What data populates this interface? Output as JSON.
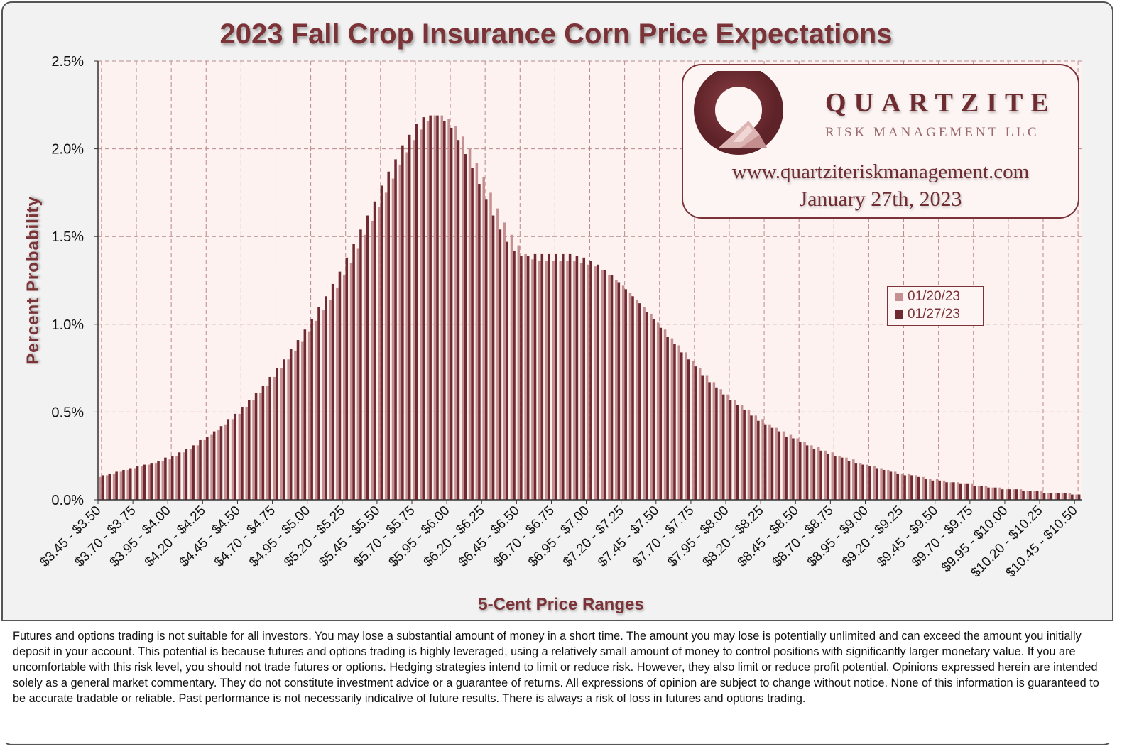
{
  "chart_data": {
    "type": "bar",
    "title": "2023 Fall Crop Insurance Corn Price Expectations",
    "xlabel": "5-Cent Price Ranges",
    "ylabel": "Percent Probability",
    "ylim": [
      0,
      2.5
    ],
    "yticks": [
      "0.0%",
      "0.5%",
      "1.0%",
      "1.5%",
      "2.0%",
      "2.5%"
    ],
    "xtick_labels": [
      "$3.45 - $3.50",
      "$3.70 - $3.75",
      "$3.95 - $4.00",
      "$4.20 - $4.25",
      "$4.45 - $4.50",
      "$4.70 - $4.75",
      "$4.95 - $5.00",
      "$5.20 - $5.25",
      "$5.45 - $5.50",
      "$5.70 - $5.75",
      "$5.95 - $6.00",
      "$6.20 - $6.25",
      "$6.45 - $6.50",
      "$6.70 - $6.75",
      "$6.95 - $7.00",
      "$7.20 - $7.25",
      "$7.45 - $7.50",
      "$7.70 - $7.75",
      "$7.95 - $8.00",
      "$8.20 - $8.25",
      "$8.45 - $8.50",
      "$8.70 - $8.75",
      "$8.95 - $9.00",
      "$9.20 - $9.25",
      "$9.45 - $9.50",
      "$9.70 - $9.75",
      "$9.95 - $10.00",
      "$10.20 - $10.25",
      "$10.45 - $10.50"
    ],
    "category_start": 3.45,
    "category_step": 0.05,
    "category_count": 141,
    "grid": true,
    "legend_position": "right",
    "series": [
      {
        "name": "01/20/23",
        "color": "#c49091",
        "values": [
          0.13,
          0.14,
          0.15,
          0.16,
          0.17,
          0.18,
          0.19,
          0.2,
          0.21,
          0.22,
          0.23,
          0.25,
          0.27,
          0.29,
          0.31,
          0.34,
          0.37,
          0.4,
          0.43,
          0.46,
          0.49,
          0.53,
          0.57,
          0.61,
          0.65,
          0.7,
          0.75,
          0.8,
          0.85,
          0.9,
          0.96,
          1.02,
          1.08,
          1.14,
          1.21,
          1.28,
          1.35,
          1.43,
          1.51,
          1.59,
          1.67,
          1.75,
          1.83,
          1.91,
          1.98,
          2.05,
          2.11,
          2.16,
          2.19,
          2.19,
          2.17,
          2.13,
          2.07,
          2.0,
          1.92,
          1.84,
          1.75,
          1.66,
          1.58,
          1.51,
          1.45,
          1.4,
          1.37,
          1.36,
          1.36,
          1.36,
          1.36,
          1.36,
          1.36,
          1.35,
          1.34,
          1.33,
          1.31,
          1.28,
          1.25,
          1.22,
          1.18,
          1.14,
          1.1,
          1.06,
          1.01,
          0.97,
          0.92,
          0.88,
          0.84,
          0.79,
          0.75,
          0.71,
          0.67,
          0.63,
          0.6,
          0.57,
          0.54,
          0.51,
          0.48,
          0.46,
          0.43,
          0.41,
          0.39,
          0.37,
          0.35,
          0.33,
          0.31,
          0.3,
          0.28,
          0.27,
          0.25,
          0.24,
          0.23,
          0.21,
          0.2,
          0.19,
          0.18,
          0.17,
          0.16,
          0.15,
          0.15,
          0.14,
          0.13,
          0.12,
          0.12,
          0.11,
          0.1,
          0.1,
          0.09,
          0.09,
          0.08,
          0.08,
          0.07,
          0.07,
          0.06,
          0.06,
          0.06,
          0.05,
          0.05,
          0.05,
          0.04,
          0.04,
          0.04,
          0.04,
          0.03
        ]
      },
      {
        "name": "01/27/23",
        "color": "#6e2a30",
        "values": [
          0.14,
          0.15,
          0.16,
          0.17,
          0.18,
          0.19,
          0.2,
          0.21,
          0.22,
          0.24,
          0.25,
          0.27,
          0.29,
          0.31,
          0.34,
          0.36,
          0.39,
          0.42,
          0.46,
          0.49,
          0.53,
          0.57,
          0.61,
          0.65,
          0.7,
          0.75,
          0.8,
          0.86,
          0.91,
          0.97,
          1.03,
          1.1,
          1.16,
          1.23,
          1.3,
          1.38,
          1.46,
          1.54,
          1.62,
          1.7,
          1.79,
          1.87,
          1.94,
          2.02,
          2.08,
          2.14,
          2.18,
          2.19,
          2.19,
          2.16,
          2.12,
          2.05,
          1.97,
          1.89,
          1.8,
          1.71,
          1.62,
          1.54,
          1.47,
          1.42,
          1.39,
          1.39,
          1.4,
          1.4,
          1.4,
          1.4,
          1.4,
          1.4,
          1.39,
          1.38,
          1.36,
          1.34,
          1.31,
          1.28,
          1.24,
          1.2,
          1.16,
          1.12,
          1.07,
          1.03,
          0.98,
          0.93,
          0.89,
          0.84,
          0.8,
          0.76,
          0.71,
          0.67,
          0.64,
          0.6,
          0.57,
          0.54,
          0.51,
          0.48,
          0.45,
          0.43,
          0.41,
          0.39,
          0.36,
          0.35,
          0.33,
          0.31,
          0.29,
          0.28,
          0.26,
          0.25,
          0.24,
          0.22,
          0.21,
          0.2,
          0.19,
          0.18,
          0.17,
          0.16,
          0.15,
          0.14,
          0.14,
          0.13,
          0.12,
          0.11,
          0.11,
          0.1,
          0.1,
          0.09,
          0.09,
          0.08,
          0.08,
          0.07,
          0.07,
          0.06,
          0.06,
          0.06,
          0.05,
          0.05,
          0.05,
          0.04,
          0.04,
          0.04,
          0.04,
          0.03,
          0.03
        ]
      }
    ]
  },
  "logo": {
    "name": "QUARTZITE",
    "subtitle": "RISK MANAGEMENT LLC",
    "url": "www.quartziteriskmanagement.com",
    "date": "January 27th, 2023"
  },
  "disclaimer": "Futures and options trading is not suitable for all investors. You may lose a substantial amount of money in a short time. The amount you may lose is potentially unlimited and can exceed the amount you initially deposit in your account. This potential is because futures and options trading is highly leveraged, using a relatively small amount of money to control positions with significantly larger monetary value. If you are uncomfortable with this risk level, you should not trade futures or options. Hedging strategies intend to limit or reduce risk. However, they also limit or reduce profit potential. Opinions expressed herein are intended solely as a general market commentary. They do not constitute investment advice or a guarantee of returns. All expressions of opinion are subject to change without notice. None of this information is guaranteed to be accurate tradable or reliable. Past performance is not necessarily indicative of future results. There is always a risk of loss in futures and options trading.",
  "colors": {
    "accent": "#7b3338",
    "series_1": "#c49091",
    "series_2": "#6e2a30",
    "plot_background": "#fdf2f0"
  }
}
